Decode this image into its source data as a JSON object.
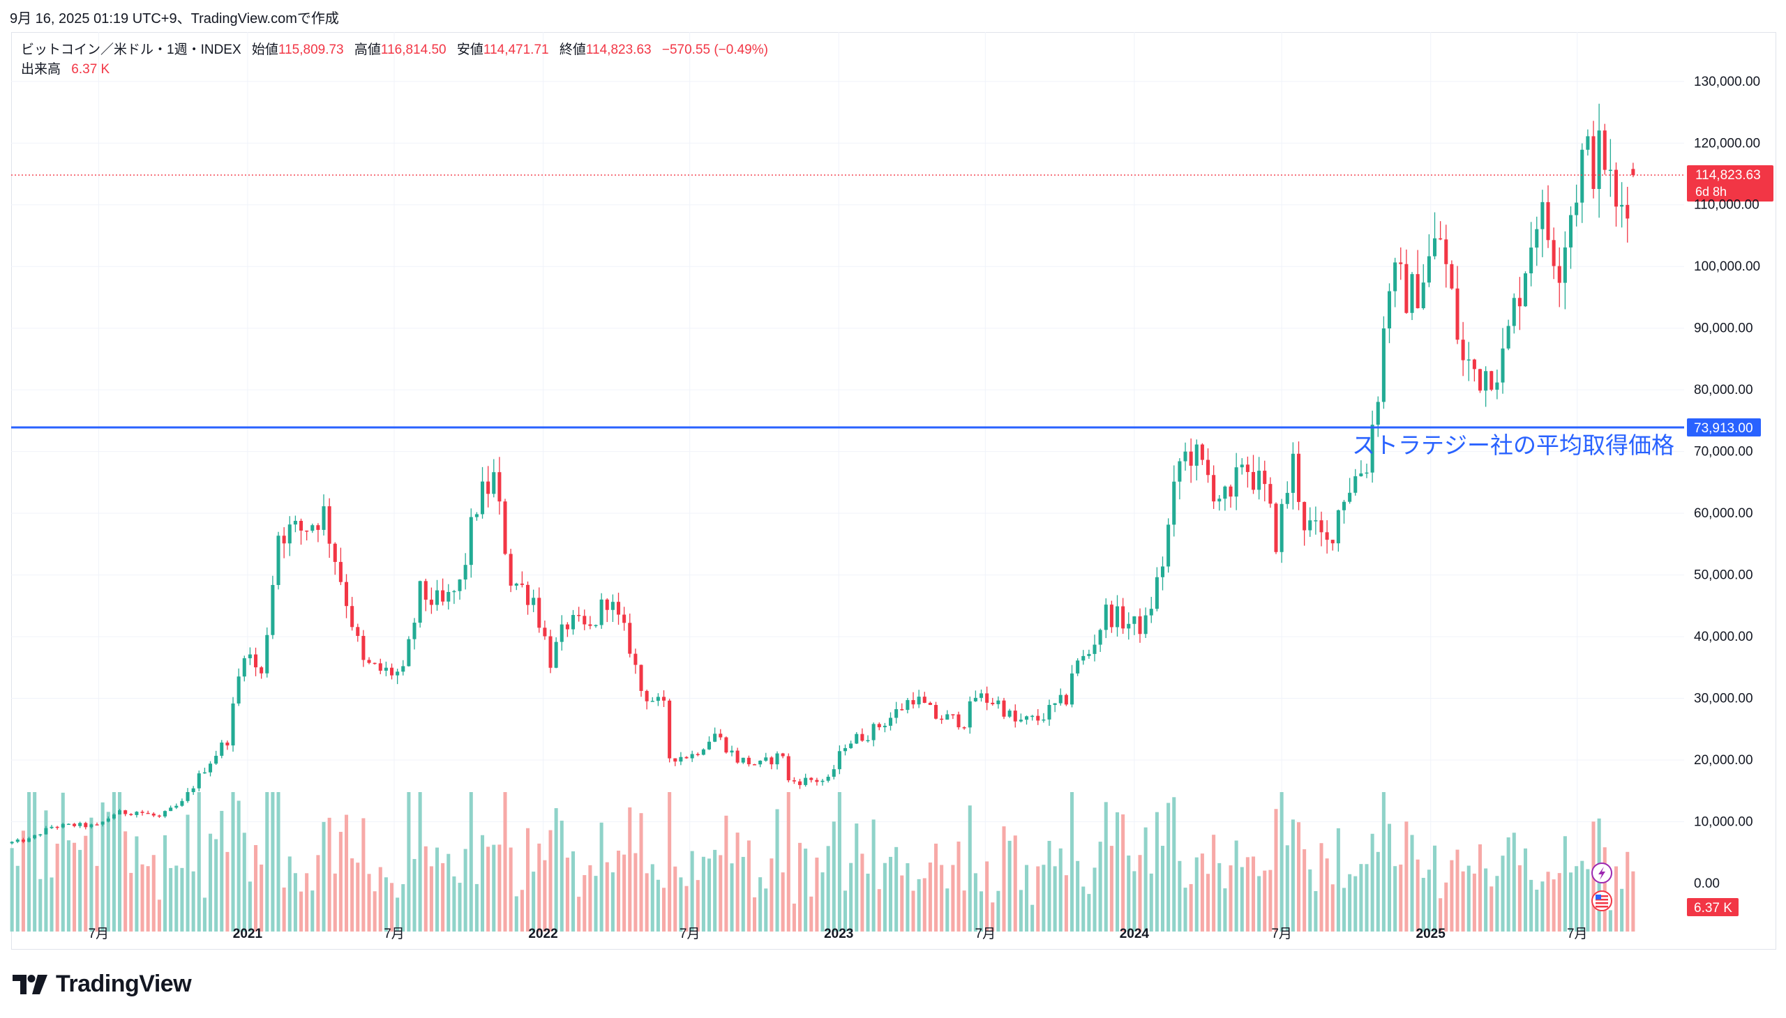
{
  "snapshot_header": "9月 16, 2025 01:19 UTC+9、TradingView.comで作成",
  "legend": {
    "symbol": "ビットコイン／米ドル・1週・INDEX",
    "open_label": "始値",
    "open": "115,809.73",
    "high_label": "高値",
    "high": "116,814.50",
    "low_label": "安値",
    "low": "114,471.71",
    "close_label": "終値",
    "close": "114,823.63",
    "change": "−570.55 (−0.49%)",
    "volume_label": "出来高",
    "volume": "6.37 K"
  },
  "price_tag": {
    "price": "114,823.63",
    "countdown": "6d 8h"
  },
  "level_tag": "73,913.00",
  "volume_tag": "6.37 K",
  "brand": "TradingView",
  "colors": {
    "up": "#22ab94",
    "down": "#f23645",
    "up_volume": "#8fd3c9",
    "down_volume": "#f7a9a7",
    "level_line": "#2962ff",
    "annotation": "#2962ff"
  },
  "chart_data": {
    "type": "candlestick",
    "title": "ビットコイン／米ドル・1週・INDEX",
    "y_axis": {
      "ticks": [
        0,
        10000,
        20000,
        30000,
        40000,
        50000,
        60000,
        70000,
        80000,
        90000,
        100000,
        110000,
        120000,
        130000
      ],
      "tick_labels": [
        "0.00",
        "10,000.00",
        "20,000.00",
        "30,000.00",
        "40,000.00",
        "50,000.00",
        "60,000.00",
        "70,000.00",
        "80,000.00",
        "90,000.00",
        "100,000.00",
        "110,000.00",
        "120,000.00",
        "130,000.00"
      ],
      "ylim": [
        -7800,
        138000
      ],
      "position": "right"
    },
    "x_axis": {
      "range": [
        "2020-03-15",
        "2025-11-10"
      ],
      "ticks": [
        {
          "date": "2020-07-01",
          "label": "7月"
        },
        {
          "date": "2021-01-01",
          "label": "2021"
        },
        {
          "date": "2021-07-01",
          "label": "7月"
        },
        {
          "date": "2022-01-01",
          "label": "2022"
        },
        {
          "date": "2022-07-01",
          "label": "7月"
        },
        {
          "date": "2023-01-01",
          "label": "2023"
        },
        {
          "date": "2023-07-01",
          "label": "7月"
        },
        {
          "date": "2024-01-01",
          "label": "2024"
        },
        {
          "date": "2024-07-01",
          "label": "7月"
        },
        {
          "date": "2025-01-01",
          "label": "2025"
        },
        {
          "date": "2025-07-01",
          "label": "7月"
        }
      ]
    },
    "weekly_close_path": [
      {
        "date": "2020-03-16",
        "close": 6500
      },
      {
        "date": "2020-04-13",
        "close": 7100
      },
      {
        "date": "2020-05-11",
        "close": 9200
      },
      {
        "date": "2020-06-08",
        "close": 9450
      },
      {
        "date": "2020-07-06",
        "close": 9250
      },
      {
        "date": "2020-07-27",
        "close": 11300
      },
      {
        "date": "2020-08-24",
        "close": 11700
      },
      {
        "date": "2020-09-21",
        "close": 10700
      },
      {
        "date": "2020-10-19",
        "close": 13000
      },
      {
        "date": "2020-11-16",
        "close": 18700
      },
      {
        "date": "2020-12-14",
        "close": 23400
      },
      {
        "date": "2021-01-04",
        "close": 38200
      },
      {
        "date": "2021-01-25",
        "close": 33500
      },
      {
        "date": "2021-02-15",
        "close": 57000
      },
      {
        "date": "2021-03-15",
        "close": 57300
      },
      {
        "date": "2021-04-12",
        "close": 60000
      },
      {
        "date": "2021-05-10",
        "close": 46000
      },
      {
        "date": "2021-05-31",
        "close": 35500
      },
      {
        "date": "2021-06-21",
        "close": 34500
      },
      {
        "date": "2021-07-19",
        "close": 33900
      },
      {
        "date": "2021-08-09",
        "close": 47000
      },
      {
        "date": "2021-09-06",
        "close": 45000
      },
      {
        "date": "2021-09-27",
        "close": 48200
      },
      {
        "date": "2021-10-18",
        "close": 61500
      },
      {
        "date": "2021-11-08",
        "close": 65500
      },
      {
        "date": "2021-11-29",
        "close": 49400
      },
      {
        "date": "2021-12-27",
        "close": 46300
      },
      {
        "date": "2022-01-17",
        "close": 36200
      },
      {
        "date": "2022-02-07",
        "close": 42200
      },
      {
        "date": "2022-03-07",
        "close": 41000
      },
      {
        "date": "2022-03-28",
        "close": 46400
      },
      {
        "date": "2022-04-25",
        "close": 38500
      },
      {
        "date": "2022-05-09",
        "close": 31300
      },
      {
        "date": "2022-06-06",
        "close": 28400
      },
      {
        "date": "2022-06-13",
        "close": 20500
      },
      {
        "date": "2022-07-11",
        "close": 20800
      },
      {
        "date": "2022-08-08",
        "close": 24300
      },
      {
        "date": "2022-09-05",
        "close": 20100
      },
      {
        "date": "2022-10-03",
        "close": 19200
      },
      {
        "date": "2022-10-31",
        "close": 21000
      },
      {
        "date": "2022-11-07",
        "close": 16500
      },
      {
        "date": "2022-12-05",
        "close": 16800
      },
      {
        "date": "2022-12-26",
        "close": 16600
      },
      {
        "date": "2023-01-16",
        "close": 22700
      },
      {
        "date": "2023-02-13",
        "close": 24300
      },
      {
        "date": "2023-03-13",
        "close": 26900
      },
      {
        "date": "2023-04-10",
        "close": 30300
      },
      {
        "date": "2023-05-08",
        "close": 27000
      },
      {
        "date": "2023-06-12",
        "close": 26300
      },
      {
        "date": "2023-06-26",
        "close": 30300
      },
      {
        "date": "2023-07-24",
        "close": 29300
      },
      {
        "date": "2023-08-14",
        "close": 26100
      },
      {
        "date": "2023-09-11",
        "close": 26600
      },
      {
        "date": "2023-10-16",
        "close": 29900
      },
      {
        "date": "2023-10-23",
        "close": 34500
      },
      {
        "date": "2023-11-13",
        "close": 37400
      },
      {
        "date": "2023-12-04",
        "close": 43900
      },
      {
        "date": "2024-01-08",
        "close": 41700
      },
      {
        "date": "2024-01-22",
        "close": 42000
      },
      {
        "date": "2024-02-12",
        "close": 52100
      },
      {
        "date": "2024-03-04",
        "close": 68300
      },
      {
        "date": "2024-03-18",
        "close": 70000
      },
      {
        "date": "2024-04-15",
        "close": 64300
      },
      {
        "date": "2024-05-06",
        "close": 60800
      },
      {
        "date": "2024-05-20",
        "close": 69000
      },
      {
        "date": "2024-06-17",
        "close": 63200
      },
      {
        "date": "2024-07-01",
        "close": 55800
      },
      {
        "date": "2024-07-22",
        "close": 68200
      },
      {
        "date": "2024-08-05",
        "close": 58700
      },
      {
        "date": "2024-09-02",
        "close": 54800
      },
      {
        "date": "2024-09-23",
        "close": 63400
      },
      {
        "date": "2024-10-21",
        "close": 68300
      },
      {
        "date": "2024-11-04",
        "close": 80400
      },
      {
        "date": "2024-11-18",
        "close": 98000
      },
      {
        "date": "2024-12-16",
        "close": 95200
      },
      {
        "date": "2025-01-20",
        "close": 104700
      },
      {
        "date": "2025-02-17",
        "close": 84300
      },
      {
        "date": "2025-03-10",
        "close": 82700
      },
      {
        "date": "2025-04-07",
        "close": 84900
      },
      {
        "date": "2025-05-19",
        "close": 109000
      },
      {
        "date": "2025-06-16",
        "close": 101500
      },
      {
        "date": "2025-07-14",
        "close": 117300
      },
      {
        "date": "2025-08-11",
        "close": 117500
      },
      {
        "date": "2025-08-25",
        "close": 108300
      },
      {
        "date": "2025-09-15",
        "close": 114823.63
      }
    ],
    "last_bar": {
      "date": "2025-09-15",
      "open": 115809.73,
      "high": 116814.5,
      "low": 114471.71,
      "close": 114823.63,
      "change": -570.55,
      "change_pct": -0.49,
      "volume": "6.37 K"
    },
    "volume_panel": {
      "visible": true,
      "baseline_label": "0.00",
      "last_volume": "6.37 K"
    },
    "horizontal_level": {
      "value": 73913.0,
      "label": "73,913.00",
      "color": "#2962ff"
    },
    "annotation": {
      "text": "ストラテジー社の平均取得価格",
      "anchor_value": 73913.0,
      "position": "below-line-right"
    },
    "current_price_line": {
      "value": 114823.63,
      "style": "dotted"
    },
    "grid": true,
    "legend_position": "top-left"
  }
}
